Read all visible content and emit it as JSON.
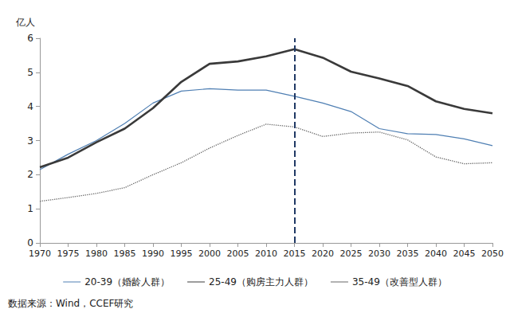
{
  "chart_data": {
    "type": "line",
    "y_label": "亿人",
    "source": "数据来源：Wind，CCEF研究",
    "categories": [
      "1970",
      "1975",
      "1980",
      "1985",
      "1990",
      "1995",
      "2000",
      "2005",
      "2010",
      "2015",
      "2020",
      "2025",
      "2030",
      "2035",
      "2040",
      "2045",
      "2050"
    ],
    "series": [
      {
        "name": "20-39（婚龄人群）",
        "color": "#4f7fb3",
        "line_style": "solid",
        "marker": "none",
        "values": [
          2.15,
          2.6,
          3.0,
          3.5,
          4.1,
          4.45,
          4.52,
          4.48,
          4.48,
          4.3,
          4.1,
          3.85,
          3.35,
          3.2,
          3.18,
          3.05,
          2.85
        ]
      },
      {
        "name": "25-49（购房主力人群）",
        "color": "#3a3a3a",
        "line_style": "solid",
        "marker": "none",
        "values": [
          2.22,
          2.5,
          2.95,
          3.35,
          3.95,
          4.72,
          5.25,
          5.32,
          5.47,
          5.68,
          5.43,
          5.02,
          4.82,
          4.6,
          4.15,
          3.93,
          3.8
        ]
      },
      {
        "name": "35-49（改善型人群）",
        "color": "#666666",
        "line_style": "dotted",
        "marker": "none",
        "values": [
          1.22,
          1.33,
          1.45,
          1.62,
          2.0,
          2.35,
          2.78,
          3.15,
          3.48,
          3.4,
          3.12,
          3.22,
          3.25,
          3.02,
          2.52,
          2.32,
          2.35
        ]
      }
    ],
    "annotations": [
      {
        "type": "vline",
        "x": "2015",
        "color": "#1f3864",
        "line_style": "dashed"
      }
    ],
    "ylim": [
      0,
      6
    ],
    "yticks": [
      0,
      1,
      2,
      3,
      4,
      5,
      6
    ],
    "grid": false,
    "legend": "bottom"
  }
}
